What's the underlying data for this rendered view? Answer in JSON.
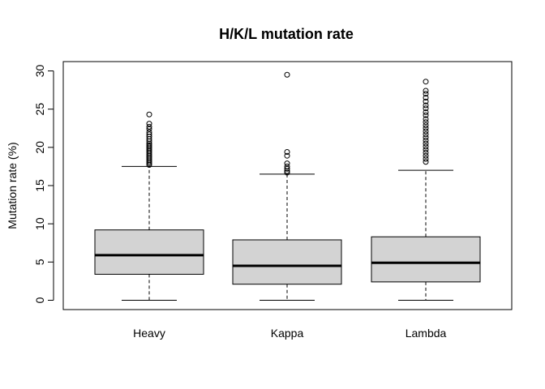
{
  "chart_data": {
    "type": "boxplot",
    "title": "H/K/L mutation rate",
    "xlabel": "",
    "ylabel": "Mutation rate (%)",
    "ylim": [
      0,
      30
    ],
    "yticks": [
      0,
      5,
      10,
      15,
      20,
      25,
      30
    ],
    "categories": [
      "Heavy",
      "Kappa",
      "Lambda"
    ],
    "box_fill": "#d3d3d3",
    "grid": false,
    "boxes": [
      {
        "name": "Heavy",
        "whisker_low": 0,
        "q1": 3.4,
        "median": 5.9,
        "q3": 9.2,
        "whisker_high": 17.5,
        "outliers": [
          17.7,
          17.9,
          18.1,
          18.3,
          18.5,
          18.7,
          18.9,
          19.1,
          19.3,
          19.5,
          19.7,
          19.9,
          20.1,
          20.3,
          20.5,
          20.8,
          21.1,
          21.4,
          21.7,
          22.0,
          22.4,
          22.7,
          23.1,
          24.3
        ]
      },
      {
        "name": "Kappa",
        "whisker_low": 0,
        "q1": 2.1,
        "median": 4.5,
        "q3": 7.9,
        "whisker_high": 16.5,
        "outliers": [
          16.7,
          16.9,
          17.2,
          17.5,
          17.9,
          18.9,
          19.4,
          29.5
        ]
      },
      {
        "name": "Lambda",
        "whisker_low": 0,
        "q1": 2.4,
        "median": 4.9,
        "q3": 8.3,
        "whisker_high": 17.0,
        "outliers": [
          18.1,
          18.5,
          18.9,
          19.3,
          19.7,
          20.1,
          20.5,
          20.9,
          21.3,
          21.7,
          22.1,
          22.5,
          22.9,
          23.3,
          23.7,
          24.2,
          24.6,
          25.1,
          25.5,
          26.0,
          26.5,
          27.0,
          27.4,
          28.6
        ]
      }
    ]
  }
}
